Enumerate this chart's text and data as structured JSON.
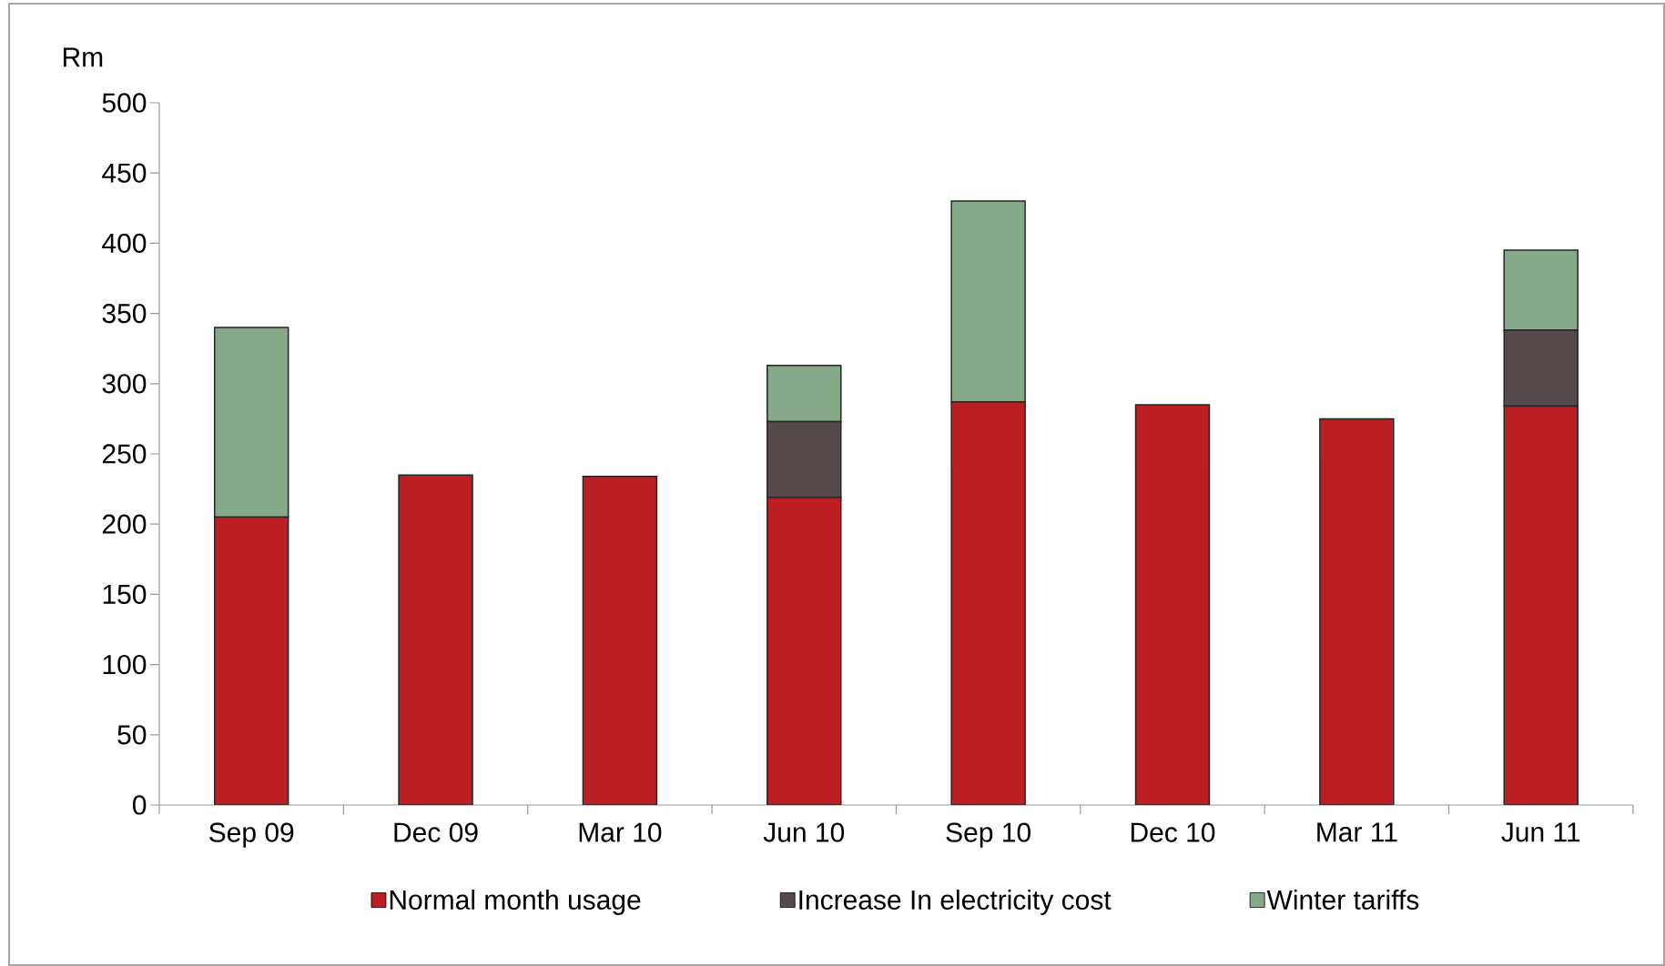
{
  "chart_data": {
    "type": "bar",
    "stacked": true,
    "ylabel": "Rm",
    "categories": [
      "Sep 09",
      "Dec 09",
      "Mar 10",
      "Jun 10",
      "Sep 10",
      "Dec 10",
      "Mar 11",
      "Jun 11"
    ],
    "series": [
      {
        "name": "Normal month usage",
        "color": "#bb1e23",
        "values": [
          205,
          235,
          234,
          219,
          287,
          285,
          275,
          284
        ]
      },
      {
        "name": "Increase In electricity cost",
        "color": "#54494b",
        "values": [
          0,
          0,
          0,
          54,
          0,
          0,
          0,
          54
        ]
      },
      {
        "name": "Winter tariffs",
        "color": "#86a98a",
        "values": [
          135,
          0,
          0,
          40,
          143,
          0,
          0,
          57
        ]
      }
    ],
    "ylim": [
      0,
      500
    ],
    "yticks": [
      0,
      50,
      100,
      150,
      200,
      250,
      300,
      350,
      400,
      450,
      500
    ],
    "grid": false,
    "legend": "bottom"
  }
}
